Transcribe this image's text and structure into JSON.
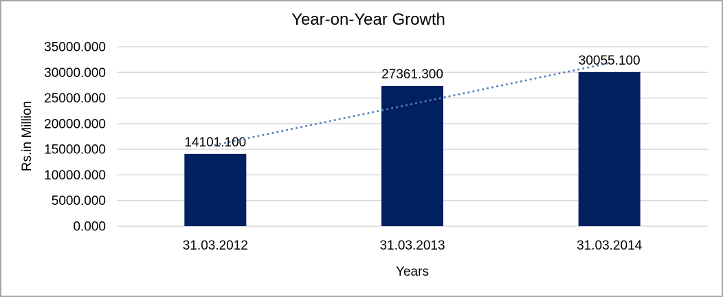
{
  "chart_data": {
    "type": "bar",
    "title": "Year-on-Year Growth",
    "xlabel": "Years",
    "ylabel": "Rs.in Million",
    "categories": [
      "31.03.2012",
      "31.03.2013",
      "31.03.2014"
    ],
    "series": [
      {
        "name": "Rs.in Million",
        "values": [
          14101.1,
          27361.3,
          30055.1
        ]
      }
    ],
    "data_labels": [
      "14101.100",
      "27361.300",
      "30055.100"
    ],
    "ylim": [
      0,
      35000
    ],
    "ytick_step": 5000,
    "ytick_labels": [
      "0.000",
      "5000.000",
      "10000.000",
      "15000.000",
      "20000.000",
      "25000.000",
      "30000.000",
      "35000.000"
    ],
    "grid": true,
    "legend": false,
    "trendline": {
      "type": "linear",
      "style": "dotted",
      "color": "#4F81BD"
    },
    "colors": {
      "bar": "#002060",
      "gridline": "#D9D9D9",
      "frame_border": "#A6A6A6",
      "text": "#000000",
      "background": "#FFFFFF"
    }
  }
}
